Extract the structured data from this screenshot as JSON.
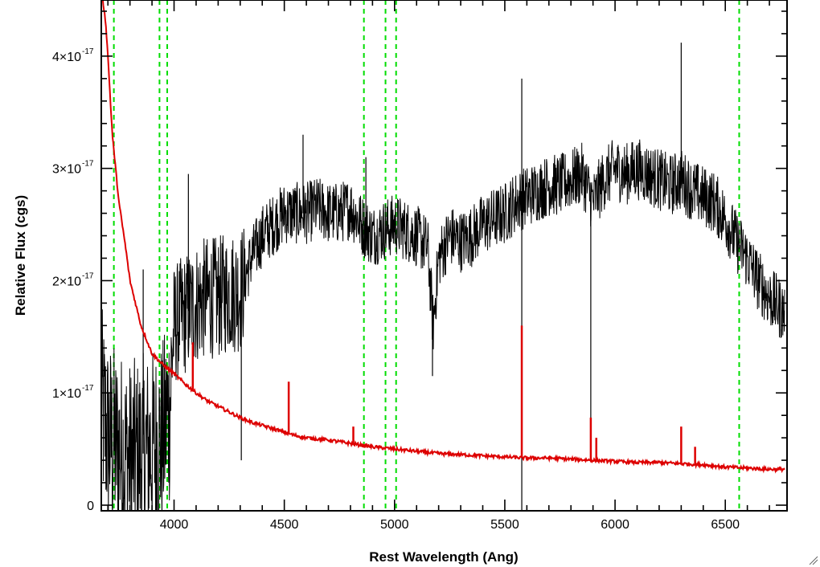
{
  "chart_data": {
    "type": "line",
    "title": "",
    "xlabel": "Rest Wavelength (Ang)",
    "ylabel": "Relative Flux (cgs)",
    "xlim": [
      3670,
      6780
    ],
    "ylim": [
      -5e-19,
      4.5e-17
    ],
    "x_ticks": [
      {
        "value": 4000,
        "label": "4000"
      },
      {
        "value": 4500,
        "label": "4500"
      },
      {
        "value": 5000,
        "label": "5000"
      },
      {
        "value": 5500,
        "label": "5500"
      },
      {
        "value": 6000,
        "label": "6000"
      },
      {
        "value": 6500,
        "label": "6500"
      }
    ],
    "x_minor_step": 100,
    "y_ticks": [
      {
        "value": 0,
        "mant": "0",
        "exp": ""
      },
      {
        "value": 1e-17,
        "mant": "1×10",
        "exp": "-17"
      },
      {
        "value": 2e-17,
        "mant": "2×10",
        "exp": "-17"
      },
      {
        "value": 3e-17,
        "mant": "3×10",
        "exp": "-17"
      },
      {
        "value": 4e-17,
        "mant": "4×10",
        "exp": "-17"
      }
    ],
    "y_minor_step": 2e-18,
    "grid": false,
    "reference_lines": [
      3727,
      3934,
      3969,
      4861,
      4959,
      5007,
      6563
    ],
    "reference_color": "#00dd00",
    "series": [
      {
        "role": "flux",
        "color": "#000000",
        "x": [
          3670,
          3700,
          3750,
          3800,
          3850,
          3900,
          3950,
          3980,
          4000,
          4050,
          4100,
          4150,
          4200,
          4250,
          4300,
          4350,
          4400,
          4450,
          4500,
          4550,
          4600,
          4650,
          4700,
          4750,
          4800,
          4850,
          4900,
          4950,
          5000,
          5050,
          5100,
          5150,
          5175,
          5200,
          5250,
          5300,
          5350,
          5400,
          5450,
          5500,
          5550,
          5600,
          5650,
          5700,
          5750,
          5800,
          5850,
          5900,
          5950,
          6000,
          6050,
          6100,
          6150,
          6200,
          6250,
          6300,
          6350,
          6400,
          6450,
          6500,
          6550,
          6600,
          6650,
          6700,
          6750,
          6770
        ],
        "y": [
          9e-18,
          6e-18,
          5e-18,
          4e-18,
          4.5e-18,
          5e-18,
          6e-18,
          9e-18,
          1.6e-17,
          1.7e-17,
          1.8e-17,
          1.85e-17,
          1.85e-17,
          1.9e-17,
          1.9e-17,
          2.2e-17,
          2.4e-17,
          2.5e-17,
          2.6e-17,
          2.6e-17,
          2.6e-17,
          2.65e-17,
          2.6e-17,
          2.6e-17,
          2.65e-17,
          2.5e-17,
          2.4e-17,
          2.45e-17,
          2.5e-17,
          2.45e-17,
          2.4e-17,
          2.3e-17,
          1.6e-17,
          2.2e-17,
          2.4e-17,
          2.35e-17,
          2.4e-17,
          2.5e-17,
          2.55e-17,
          2.6e-17,
          2.7e-17,
          2.75e-17,
          2.8e-17,
          2.85e-17,
          2.85e-17,
          2.9e-17,
          2.95e-17,
          2.7e-17,
          2.9e-17,
          3e-17,
          2.95e-17,
          3e-17,
          2.95e-17,
          2.9e-17,
          2.85e-17,
          2.9e-17,
          2.8e-17,
          2.75e-17,
          2.7e-17,
          2.55e-17,
          2.35e-17,
          2.2e-17,
          2e-17,
          1.85e-17,
          1.75e-17,
          1.7e-17
        ]
      },
      {
        "role": "error",
        "color": "#dd0000",
        "x": [
          3670,
          3690,
          3700,
          3720,
          3750,
          3780,
          3800,
          3850,
          3900,
          3950,
          4000,
          4050,
          4100,
          4150,
          4200,
          4250,
          4300,
          4350,
          4400,
          4450,
          4500,
          4550,
          4600,
          4700,
          4800,
          4900,
          5000,
          5100,
          5200,
          5300,
          5400,
          5500,
          5600,
          5700,
          5800,
          5900,
          6000,
          6100,
          6200,
          6300,
          6400,
          6500,
          6600,
          6700,
          6770
        ],
        "y": [
          4.6e-17,
          4.3e-17,
          4e-17,
          3.3e-17,
          2.7e-17,
          2.3e-17,
          2e-17,
          1.6e-17,
          1.35e-17,
          1.25e-17,
          1.17e-17,
          1.08e-17,
          1e-17,
          9.3e-18,
          8.8e-18,
          8.3e-18,
          7.8e-18,
          7.4e-18,
          7.1e-18,
          6.8e-18,
          6.5e-18,
          6.2e-18,
          6e-18,
          5.8e-18,
          5.5e-18,
          5.2e-18,
          5e-18,
          4.8e-18,
          4.6e-18,
          4.5e-18,
          4.4e-18,
          4.3e-18,
          4.2e-18,
          4.2e-18,
          4.1e-18,
          4e-18,
          3.9e-18,
          3.8e-18,
          3.8e-18,
          3.7e-18,
          3.6e-18,
          3.4e-18,
          3.3e-18,
          3.2e-18,
          3.2e-18
        ]
      }
    ],
    "error_spikes": [
      {
        "x": 4085,
        "y": 1.45e-17
      },
      {
        "x": 4520,
        "y": 1.1e-17
      },
      {
        "x": 4813,
        "y": 7e-18
      },
      {
        "x": 5577,
        "y": 1.6e-17
      },
      {
        "x": 5890,
        "y": 7.8e-18
      },
      {
        "x": 5915,
        "y": 6e-18
      },
      {
        "x": 6300,
        "y": 7e-18
      },
      {
        "x": 6363,
        "y": 5.2e-18
      }
    ],
    "flux_spikes": [
      {
        "x": 3860,
        "y": 2.1e-17
      },
      {
        "x": 4065,
        "y": 2.95e-17
      },
      {
        "x": 4305,
        "y": 4e-18
      },
      {
        "x": 4585,
        "y": 3.3e-17
      },
      {
        "x": 4870,
        "y": 3.1e-17
      },
      {
        "x": 5172,
        "y": 1.15e-17
      },
      {
        "x": 5577,
        "y": -5e-19
      },
      {
        "x": 5577,
        "y": 3.8e-17
      },
      {
        "x": 5890,
        "y": 7e-18
      },
      {
        "x": 6300,
        "y": 4.12e-17
      }
    ]
  }
}
